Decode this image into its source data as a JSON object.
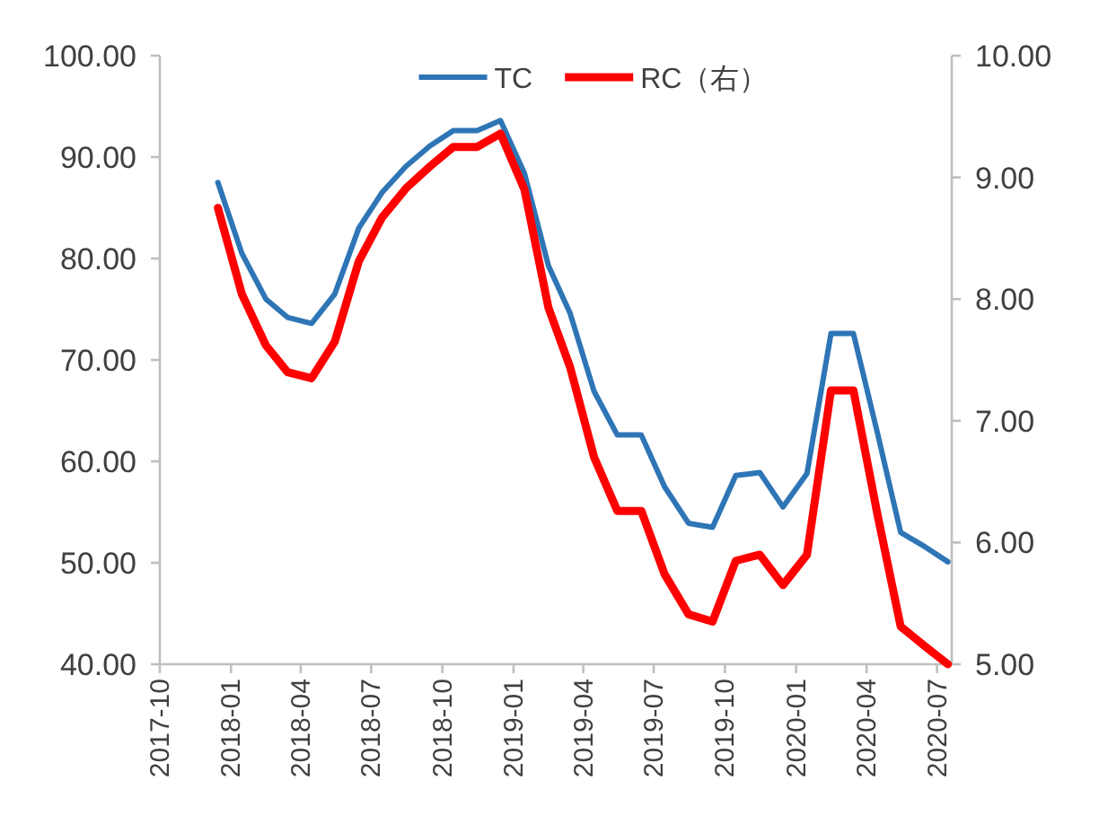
{
  "chart_data": {
    "type": "line",
    "x": [
      "2017-12-15",
      "2018-01-15",
      "2018-02-15",
      "2018-03-15",
      "2018-04-15",
      "2018-05-15",
      "2018-06-15",
      "2018-07-15",
      "2018-08-15",
      "2018-09-15",
      "2018-10-15",
      "2018-11-15",
      "2018-12-15",
      "2019-01-15",
      "2019-02-15",
      "2019-03-15",
      "2019-04-15",
      "2019-05-15",
      "2019-06-15",
      "2019-07-15",
      "2019-08-15",
      "2019-09-15",
      "2019-10-15",
      "2019-11-15",
      "2019-12-15",
      "2020-01-15",
      "2020-02-15",
      "2020-03-15",
      "2020-04-15",
      "2020-05-15",
      "2020-06-15",
      "2020-07-15"
    ],
    "series": [
      {
        "name": "TC",
        "color": "#2e75b6",
        "values": [
          87.5,
          80.5,
          76.0,
          74.2,
          73.6,
          76.5,
          83.0,
          86.5,
          89.1,
          91.1,
          92.6,
          92.6,
          93.6,
          88.4,
          79.3,
          74.6,
          66.9,
          62.6,
          62.6,
          57.5,
          53.9,
          53.5,
          58.6,
          58.9,
          55.5,
          58.8,
          72.6,
          72.6,
          62.8,
          53.0,
          51.6,
          50.1
        ]
      },
      {
        "name": "RC（右）",
        "color": "#ff0000",
        "axis": "y2",
        "values": [
          8.75,
          8.04,
          7.62,
          7.4,
          7.35,
          7.65,
          8.31,
          8.67,
          8.91,
          9.09,
          9.25,
          9.25,
          9.36,
          8.9,
          7.93,
          7.44,
          6.7,
          6.26,
          6.26,
          5.74,
          5.41,
          5.35,
          5.85,
          5.9,
          5.65,
          5.9,
          7.25,
          7.25,
          6.23,
          5.31,
          5.15,
          5.0
        ]
      }
    ],
    "xlim": [
      "2017-10-01",
      "2020-07-20"
    ],
    "xticks": [
      {
        "value": "2017-10-01",
        "label": "2017-10"
      },
      {
        "value": "2018-01-01",
        "label": "2018-01"
      },
      {
        "value": "2018-04-01",
        "label": "2018-04"
      },
      {
        "value": "2018-07-01",
        "label": "2018-07"
      },
      {
        "value": "2018-10-01",
        "label": "2018-10"
      },
      {
        "value": "2019-01-01",
        "label": "2019-01"
      },
      {
        "value": "2019-04-01",
        "label": "2019-04"
      },
      {
        "value": "2019-07-01",
        "label": "2019-07"
      },
      {
        "value": "2019-10-01",
        "label": "2019-10"
      },
      {
        "value": "2020-01-01",
        "label": "2020-01"
      },
      {
        "value": "2020-04-01",
        "label": "2020-04"
      },
      {
        "value": "2020-07-01",
        "label": "2020-07"
      }
    ],
    "ylim": [
      40,
      100
    ],
    "yticks": [
      {
        "value": 40,
        "label": "40.00"
      },
      {
        "value": 50,
        "label": "50.00"
      },
      {
        "value": 60,
        "label": "60.00"
      },
      {
        "value": 70,
        "label": "70.00"
      },
      {
        "value": 80,
        "label": "80.00"
      },
      {
        "value": 90,
        "label": "90.00"
      },
      {
        "value": 100,
        "label": "100.00"
      }
    ],
    "y2lim": [
      5,
      10
    ],
    "y2ticks": [
      {
        "value": 5,
        "label": "5.00"
      },
      {
        "value": 6,
        "label": "6.00"
      },
      {
        "value": 7,
        "label": "7.00"
      },
      {
        "value": 8,
        "label": "8.00"
      },
      {
        "value": 9,
        "label": "9.00"
      },
      {
        "value": 10,
        "label": "10.00"
      }
    ],
    "legend": "top"
  }
}
